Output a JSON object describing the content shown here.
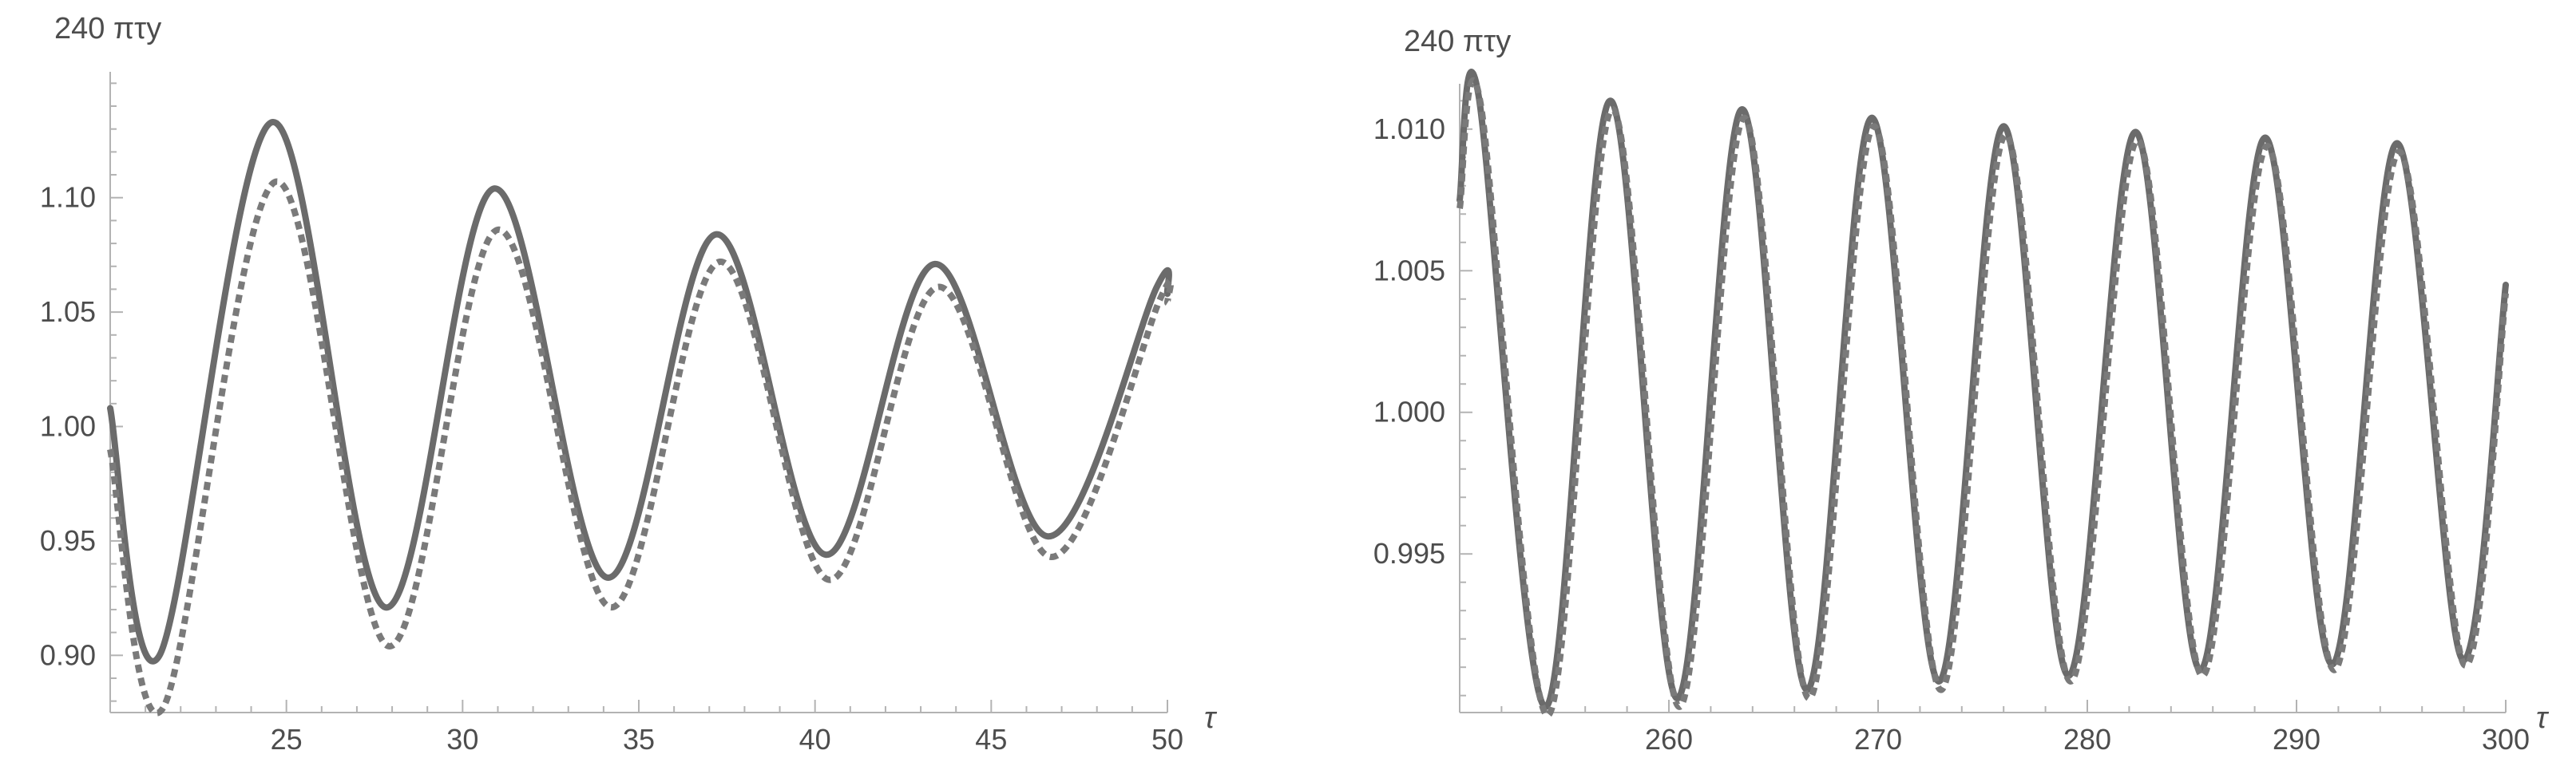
{
  "chart_data": [
    {
      "type": "line",
      "title": "",
      "ylabel": "240 πτy",
      "xlabel": "τ",
      "xlim": [
        20,
        50
      ],
      "ylim": [
        0.875,
        1.155
      ],
      "x_ticks": [
        25,
        30,
        35,
        40,
        45,
        50
      ],
      "y_ticks": [
        0.9,
        0.95,
        1.0,
        1.05,
        1.1
      ],
      "x_tick_labels": [
        "25",
        "30",
        "35",
        "40",
        "45",
        "50"
      ],
      "y_tick_labels": [
        "0.90",
        "0.95",
        "1.00",
        "1.05",
        "1.10"
      ],
      "grid": false,
      "series": [
        {
          "style": "solid",
          "color": "#6b6b6b",
          "x": [
            20,
            21.4,
            24.6,
            27.8,
            30.9,
            34.1,
            37.2,
            40.3,
            43.4,
            46.6,
            49.7,
            50
          ],
          "y": [
            1.008,
            0.9,
            1.133,
            0.921,
            1.104,
            0.934,
            1.084,
            0.944,
            1.071,
            0.952,
            1.061,
            1.058
          ]
        },
        {
          "style": "dashed",
          "color": "#7a7a7a",
          "x": [
            20,
            21.5,
            24.7,
            27.9,
            31.0,
            34.2,
            37.3,
            40.4,
            43.5,
            46.7,
            49.8,
            50
          ],
          "y": [
            0.99,
            0.877,
            1.107,
            0.904,
            1.086,
            0.921,
            1.072,
            0.933,
            1.061,
            0.943,
            1.056,
            1.054
          ]
        }
      ]
    },
    {
      "type": "line",
      "title": "",
      "ylabel": "240 πτy",
      "xlabel": "τ",
      "xlim": [
        250,
        300
      ],
      "ylim": [
        0.9894,
        1.0116
      ],
      "x_ticks": [
        260,
        270,
        280,
        290,
        300
      ],
      "y_ticks": [
        0.995,
        1.0,
        1.005,
        1.01
      ],
      "x_tick_labels": [
        "260",
        "270",
        "280",
        "290",
        "300"
      ],
      "y_tick_labels": [
        "0.995",
        "1.000",
        "1.005",
        "1.010"
      ],
      "grid": false,
      "series": [
        {
          "style": "solid",
          "color": "#6b6b6b",
          "x": [
            250,
            250.9,
            254.1,
            257.2,
            260.4,
            263.5,
            266.6,
            269.7,
            272.9,
            276.0,
            279.1,
            282.3,
            285.4,
            288.5,
            291.7,
            294.8,
            297.9,
            300
          ],
          "y": [
            1.0075,
            1.0112,
            0.9896,
            1.011,
            0.9899,
            1.0107,
            0.9902,
            1.0104,
            0.9905,
            1.0101,
            0.9907,
            1.0099,
            0.9909,
            1.0097,
            0.9911,
            1.0095,
            0.9913,
            1.0045
          ]
        },
        {
          "style": "dashed",
          "color": "#7a7a7a",
          "x": [
            250,
            251.0,
            254.2,
            257.3,
            260.5,
            263.6,
            266.7,
            269.8,
            273.0,
            276.1,
            279.2,
            282.4,
            285.5,
            288.6,
            291.8,
            294.9,
            298.0,
            300
          ],
          "y": [
            1.0072,
            1.0109,
            0.9893,
            1.0107,
            0.9896,
            1.0104,
            0.9899,
            1.0101,
            0.9902,
            1.0098,
            0.9905,
            1.0096,
            0.9907,
            1.0094,
            0.9909,
            1.0092,
            0.9911,
            1.0042
          ]
        }
      ]
    }
  ]
}
